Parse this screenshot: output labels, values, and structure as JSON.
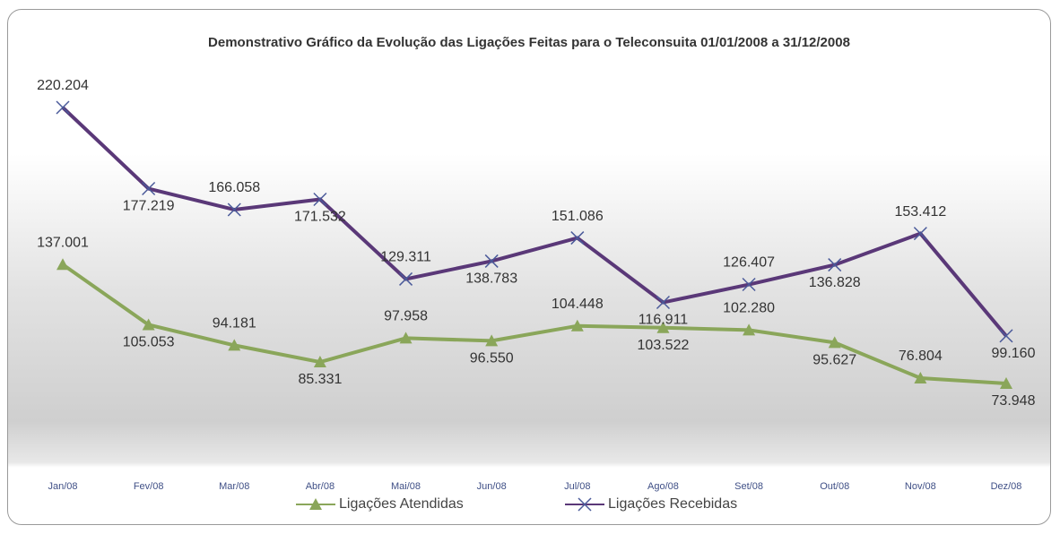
{
  "chart_data": {
    "type": "line",
    "title": "Demonstrativo Gráfico da Evolução das Ligações Feitas para o Teleconsuita 01/01/2008 a 31/12/2008",
    "categories": [
      "Jan/08",
      "Fev/08",
      "Mar/08",
      "Abr/08",
      "Mai/08",
      "Jun/08",
      "Jul/08",
      "Ago/08",
      "Set/08",
      "Out/08",
      "Nov/08",
      "Dez/08"
    ],
    "series": [
      {
        "name": "Ligações Atendidas",
        "color": "#8aa65a",
        "marker": "triangle",
        "values": [
          137001,
          105053,
          94181,
          85331,
          97958,
          96550,
          104448,
          103522,
          102280,
          95627,
          76804,
          73948
        ],
        "value_labels": [
          "137.001",
          "105.053",
          "94.181",
          "85.331",
          "97.958",
          "96.550",
          "104.448",
          "103.522",
          "102.280",
          "95.627",
          "76.804",
          "73.948"
        ]
      },
      {
        "name": "Ligações Recebidas",
        "color": "#5a3878",
        "marker": "x",
        "values": [
          220204,
          177219,
          166058,
          171532,
          129311,
          138783,
          151086,
          116911,
          126407,
          136828,
          153412,
          99160
        ],
        "value_labels": [
          "220.204",
          "177.219",
          "166.058",
          "171.532",
          "129.311",
          "138.783",
          "151.086",
          "116.911",
          "126.407",
          "136.828",
          "153.412",
          "99.160"
        ]
      }
    ]
  }
}
